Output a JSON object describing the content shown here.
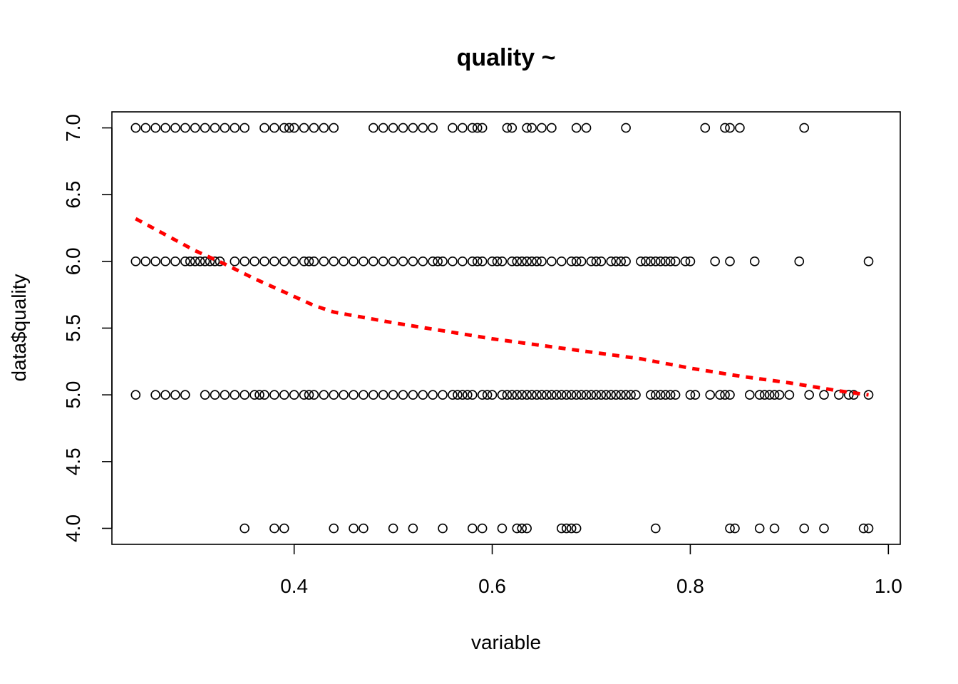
{
  "chart_data": {
    "type": "scatter",
    "title": "quality ~",
    "xlabel": "variable",
    "ylabel": "data$quality",
    "xlim": [
      0.216,
      1.012
    ],
    "ylim": [
      3.88,
      7.12
    ],
    "x_ticks": [
      0.4,
      0.6,
      0.8,
      1.0
    ],
    "x_tick_labels": [
      "0.4",
      "0.6",
      "0.8",
      "1.0"
    ],
    "y_ticks": [
      4.0,
      4.5,
      5.0,
      5.5,
      6.0,
      6.5,
      7.0
    ],
    "y_tick_labels": [
      "4.0",
      "4.5",
      "5.0",
      "5.5",
      "6.0",
      "6.5",
      "7.0"
    ],
    "grid": false,
    "colors": {
      "points": "#000000",
      "trend": "#ff0000"
    },
    "series": [
      {
        "kind": "points",
        "points": [
          [
            0.24,
            7
          ],
          [
            0.25,
            7
          ],
          [
            0.26,
            7
          ],
          [
            0.27,
            7
          ],
          [
            0.28,
            7
          ],
          [
            0.29,
            7
          ],
          [
            0.3,
            7
          ],
          [
            0.31,
            7
          ],
          [
            0.32,
            7
          ],
          [
            0.33,
            7
          ],
          [
            0.34,
            7
          ],
          [
            0.35,
            7
          ],
          [
            0.37,
            7
          ],
          [
            0.38,
            7
          ],
          [
            0.39,
            7
          ],
          [
            0.395,
            7
          ],
          [
            0.4,
            7
          ],
          [
            0.41,
            7
          ],
          [
            0.42,
            7
          ],
          [
            0.43,
            7
          ],
          [
            0.44,
            7
          ],
          [
            0.48,
            7
          ],
          [
            0.49,
            7
          ],
          [
            0.5,
            7
          ],
          [
            0.51,
            7
          ],
          [
            0.52,
            7
          ],
          [
            0.53,
            7
          ],
          [
            0.54,
            7
          ],
          [
            0.56,
            7
          ],
          [
            0.57,
            7
          ],
          [
            0.58,
            7
          ],
          [
            0.585,
            7
          ],
          [
            0.59,
            7
          ],
          [
            0.615,
            7
          ],
          [
            0.62,
            7
          ],
          [
            0.635,
            7
          ],
          [
            0.64,
            7
          ],
          [
            0.65,
            7
          ],
          [
            0.66,
            7
          ],
          [
            0.685,
            7
          ],
          [
            0.695,
            7
          ],
          [
            0.735,
            7
          ],
          [
            0.815,
            7
          ],
          [
            0.835,
            7
          ],
          [
            0.84,
            7
          ],
          [
            0.85,
            7
          ],
          [
            0.915,
            7
          ],
          [
            0.24,
            6
          ],
          [
            0.25,
            6
          ],
          [
            0.26,
            6
          ],
          [
            0.27,
            6
          ],
          [
            0.28,
            6
          ],
          [
            0.29,
            6
          ],
          [
            0.295,
            6
          ],
          [
            0.3,
            6
          ],
          [
            0.305,
            6
          ],
          [
            0.31,
            6
          ],
          [
            0.315,
            6
          ],
          [
            0.32,
            6
          ],
          [
            0.325,
            6
          ],
          [
            0.34,
            6
          ],
          [
            0.35,
            6
          ],
          [
            0.36,
            6
          ],
          [
            0.37,
            6
          ],
          [
            0.38,
            6
          ],
          [
            0.39,
            6
          ],
          [
            0.4,
            6
          ],
          [
            0.41,
            6
          ],
          [
            0.415,
            6
          ],
          [
            0.42,
            6
          ],
          [
            0.43,
            6
          ],
          [
            0.44,
            6
          ],
          [
            0.45,
            6
          ],
          [
            0.46,
            6
          ],
          [
            0.47,
            6
          ],
          [
            0.48,
            6
          ],
          [
            0.49,
            6
          ],
          [
            0.5,
            6
          ],
          [
            0.51,
            6
          ],
          [
            0.52,
            6
          ],
          [
            0.53,
            6
          ],
          [
            0.54,
            6
          ],
          [
            0.545,
            6
          ],
          [
            0.55,
            6
          ],
          [
            0.56,
            6
          ],
          [
            0.57,
            6
          ],
          [
            0.58,
            6
          ],
          [
            0.585,
            6
          ],
          [
            0.59,
            6
          ],
          [
            0.6,
            6
          ],
          [
            0.605,
            6
          ],
          [
            0.61,
            6
          ],
          [
            0.62,
            6
          ],
          [
            0.625,
            6
          ],
          [
            0.63,
            6
          ],
          [
            0.635,
            6
          ],
          [
            0.64,
            6
          ],
          [
            0.645,
            6
          ],
          [
            0.65,
            6
          ],
          [
            0.66,
            6
          ],
          [
            0.67,
            6
          ],
          [
            0.68,
            6
          ],
          [
            0.685,
            6
          ],
          [
            0.69,
            6
          ],
          [
            0.7,
            6
          ],
          [
            0.705,
            6
          ],
          [
            0.71,
            6
          ],
          [
            0.72,
            6
          ],
          [
            0.725,
            6
          ],
          [
            0.73,
            6
          ],
          [
            0.735,
            6
          ],
          [
            0.75,
            6
          ],
          [
            0.755,
            6
          ],
          [
            0.76,
            6
          ],
          [
            0.765,
            6
          ],
          [
            0.77,
            6
          ],
          [
            0.775,
            6
          ],
          [
            0.78,
            6
          ],
          [
            0.785,
            6
          ],
          [
            0.795,
            6
          ],
          [
            0.8,
            6
          ],
          [
            0.825,
            6
          ],
          [
            0.84,
            6
          ],
          [
            0.865,
            6
          ],
          [
            0.91,
            6
          ],
          [
            0.98,
            6
          ],
          [
            0.24,
            5
          ],
          [
            0.26,
            5
          ],
          [
            0.27,
            5
          ],
          [
            0.28,
            5
          ],
          [
            0.29,
            5
          ],
          [
            0.31,
            5
          ],
          [
            0.32,
            5
          ],
          [
            0.33,
            5
          ],
          [
            0.34,
            5
          ],
          [
            0.35,
            5
          ],
          [
            0.36,
            5
          ],
          [
            0.365,
            5
          ],
          [
            0.37,
            5
          ],
          [
            0.38,
            5
          ],
          [
            0.39,
            5
          ],
          [
            0.4,
            5
          ],
          [
            0.41,
            5
          ],
          [
            0.415,
            5
          ],
          [
            0.42,
            5
          ],
          [
            0.43,
            5
          ],
          [
            0.44,
            5
          ],
          [
            0.45,
            5
          ],
          [
            0.46,
            5
          ],
          [
            0.47,
            5
          ],
          [
            0.48,
            5
          ],
          [
            0.49,
            5
          ],
          [
            0.5,
            5
          ],
          [
            0.51,
            5
          ],
          [
            0.52,
            5
          ],
          [
            0.53,
            5
          ],
          [
            0.54,
            5
          ],
          [
            0.55,
            5
          ],
          [
            0.56,
            5
          ],
          [
            0.565,
            5
          ],
          [
            0.57,
            5
          ],
          [
            0.575,
            5
          ],
          [
            0.58,
            5
          ],
          [
            0.59,
            5
          ],
          [
            0.595,
            5
          ],
          [
            0.6,
            5
          ],
          [
            0.61,
            5
          ],
          [
            0.615,
            5
          ],
          [
            0.62,
            5
          ],
          [
            0.625,
            5
          ],
          [
            0.63,
            5
          ],
          [
            0.635,
            5
          ],
          [
            0.64,
            5
          ],
          [
            0.645,
            5
          ],
          [
            0.65,
            5
          ],
          [
            0.655,
            5
          ],
          [
            0.66,
            5
          ],
          [
            0.665,
            5
          ],
          [
            0.67,
            5
          ],
          [
            0.675,
            5
          ],
          [
            0.68,
            5
          ],
          [
            0.685,
            5
          ],
          [
            0.69,
            5
          ],
          [
            0.695,
            5
          ],
          [
            0.7,
            5
          ],
          [
            0.705,
            5
          ],
          [
            0.71,
            5
          ],
          [
            0.715,
            5
          ],
          [
            0.72,
            5
          ],
          [
            0.725,
            5
          ],
          [
            0.73,
            5
          ],
          [
            0.735,
            5
          ],
          [
            0.74,
            5
          ],
          [
            0.745,
            5
          ],
          [
            0.76,
            5
          ],
          [
            0.765,
            5
          ],
          [
            0.77,
            5
          ],
          [
            0.775,
            5
          ],
          [
            0.78,
            5
          ],
          [
            0.785,
            5
          ],
          [
            0.8,
            5
          ],
          [
            0.805,
            5
          ],
          [
            0.82,
            5
          ],
          [
            0.83,
            5
          ],
          [
            0.835,
            5
          ],
          [
            0.84,
            5
          ],
          [
            0.86,
            5
          ],
          [
            0.87,
            5
          ],
          [
            0.875,
            5
          ],
          [
            0.88,
            5
          ],
          [
            0.885,
            5
          ],
          [
            0.89,
            5
          ],
          [
            0.9,
            5
          ],
          [
            0.92,
            5
          ],
          [
            0.935,
            5
          ],
          [
            0.95,
            5
          ],
          [
            0.96,
            5
          ],
          [
            0.965,
            5
          ],
          [
            0.98,
            5
          ],
          [
            0.35,
            4
          ],
          [
            0.38,
            4
          ],
          [
            0.39,
            4
          ],
          [
            0.44,
            4
          ],
          [
            0.46,
            4
          ],
          [
            0.47,
            4
          ],
          [
            0.5,
            4
          ],
          [
            0.52,
            4
          ],
          [
            0.55,
            4
          ],
          [
            0.58,
            4
          ],
          [
            0.59,
            4
          ],
          [
            0.61,
            4
          ],
          [
            0.625,
            4
          ],
          [
            0.63,
            4
          ],
          [
            0.635,
            4
          ],
          [
            0.67,
            4
          ],
          [
            0.675,
            4
          ],
          [
            0.68,
            4
          ],
          [
            0.685,
            4
          ],
          [
            0.765,
            4
          ],
          [
            0.84,
            4
          ],
          [
            0.845,
            4
          ],
          [
            0.87,
            4
          ],
          [
            0.885,
            4
          ],
          [
            0.915,
            4
          ],
          [
            0.935,
            4
          ],
          [
            0.975,
            4
          ],
          [
            0.98,
            4
          ]
        ]
      },
      {
        "kind": "smooth-line",
        "points": [
          [
            0.24,
            6.32
          ],
          [
            0.27,
            6.2
          ],
          [
            0.3,
            6.08
          ],
          [
            0.33,
            5.98
          ],
          [
            0.36,
            5.87
          ],
          [
            0.39,
            5.77
          ],
          [
            0.42,
            5.67
          ],
          [
            0.44,
            5.62
          ],
          [
            0.47,
            5.58
          ],
          [
            0.5,
            5.54
          ],
          [
            0.55,
            5.48
          ],
          [
            0.6,
            5.42
          ],
          [
            0.65,
            5.37
          ],
          [
            0.7,
            5.32
          ],
          [
            0.75,
            5.27
          ],
          [
            0.8,
            5.2
          ],
          [
            0.85,
            5.14
          ],
          [
            0.9,
            5.09
          ],
          [
            0.95,
            5.03
          ],
          [
            0.98,
            5.0
          ]
        ]
      }
    ]
  }
}
